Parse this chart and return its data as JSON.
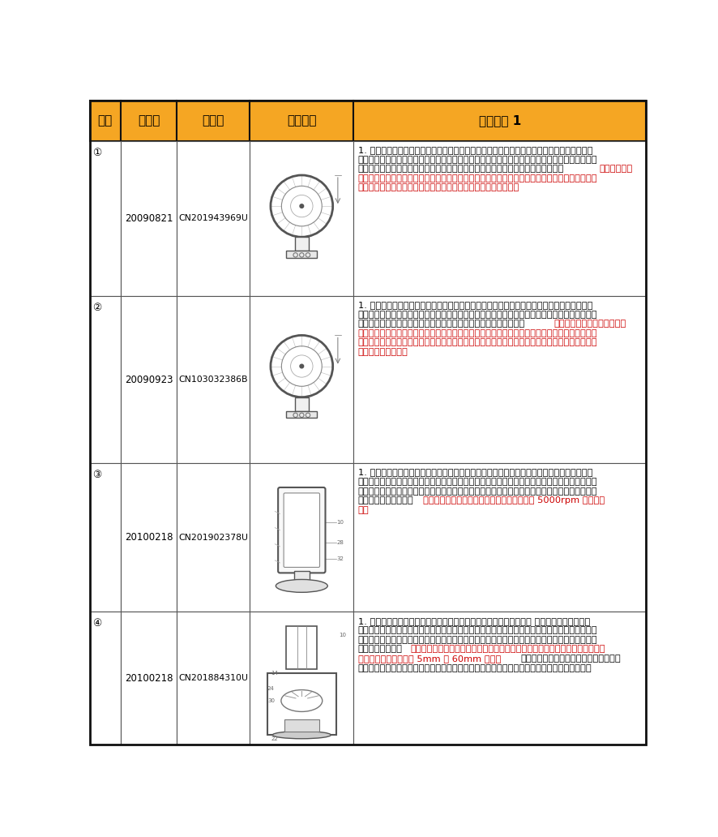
{
  "figsize": [
    8.86,
    10.32
  ],
  "dpi": 100,
  "header_bg": "#F5A623",
  "header_text_color": "#000000",
  "cell_bg": "#FFFFFF",
  "border_color_outer": "#111111",
  "border_color_inner": "#555555",
  "red_color": "#CC0000",
  "row_tops": [
    0,
    65,
    313,
    581,
    819,
    1032
  ],
  "col_starts": [
    0,
    49,
    139,
    255,
    420
  ],
  "col_ends": [
    49,
    139,
    255,
    420,
    886
  ],
  "headers": [
    "序号",
    "申请日",
    "公告号",
    "摘要附图",
    "权利要求 1"
  ],
  "seq_nums": [
    "①",
    "②",
    "③",
    "④"
  ],
  "dates": [
    "20090821",
    "20090923",
    "20100218",
    "20100218"
  ],
  "pubs": [
    "CN201943969U",
    "CN103032386B",
    "CN201902378U",
    "CN201884310U"
  ],
  "cell_texts": [
    {
      "b1": "1. 一种用于形成气流的无叶片风扇组件，其特征在于，该风扇组件包括用于形成气流的装置和噴嘴，该噴嘴包括用于接收气流的内部通道的和用于发射气流的嘴部，所述噴嘴绕一轴线延伸，以限定一开口，来自风扇组件外部的空气被从所述嘴部发射的气流拽吸通过所述开口，",
      "r": "噴嘴包括一表面，所述嘴部被设置在该表面上以引导气流，该表面包括扩散部分和引导部分，该扩散部分呇锥形地远离所述轴线，该引导部分在所述扩散部分下游并与之成角度。",
      "b2": ""
    },
    {
      "b1": "1. 一种用于形成气流的无叶片风扇组件，该风扇组件包括用于形成气流的装置和噴嘴，该噴嘴包括用于接收气流的内部通道和用于发射气流的嘴部，所述噴嘴绕一轴线延伸，以限定一开口，来自风扇组件外部的空气被从所述嘴部发射的气流拽吸通过所述开口，",
      "r": "所述噴嘴包括一表面，所述嘴部被设置在该表面上以引导气流，该表面包括扩散部分和引导部分，该扩散部分呇锥形地远离所述轴线，该引导部分在所述扩散部分下游并与之成角度。其中所述噴嘴的表面包括位于引导部分下游的向外张开的表面。",
      "b2": ""
    },
    {
      "b1": "1. 一种用于形成气流的风扇组件，其特征在于，该风扇组件包括空气入口、空气出口、叶轮和用于让叶轮旋转以形成从空气入口到空气出口流动的气流的马达，空气出口包括用于接收气流的内部通道和用于发出气流的嘴部，该空气出口限定了开口，来自风扇组件外界的空气被从嘴部发出的气流抽吸通过该开口，",
      "r": "其中马达具有转子，该转子在使用中能以至少 5000rpm 的速度旋转。",
      "b2": ""
    },
    {
      "b1": "1. 一种用于产生气流的风扇组件，其特征在于，所述风扇组件包括： 基本柱状的基部，所述基部包括外壳体，外壳体具有侧壁，侧壁包括至少一个空气入口，所述外壳体容纳叶轮机罩，叶轮机罩包括空气入口和空气出口；位于叶轮机罩内的叶轮；围绕轴线驱动叶轮以产生空气穿过叶轮机罩的气流的马达；",
      "r": "和位于叶轮机罩入口下方并沿所述轴线与叶轮机罩的空气入口隔开一定距离的消音构件，所述距离介于 5mm 到 60mm 之间；",
      "b2": "和安装在所述基部上的噴嘴，所述噴嘴包括用来从叶轮机罩的空气出口接收气流的内部通道和嘴部，其中气流通过嘴部从风扇组件射出。"
    }
  ]
}
